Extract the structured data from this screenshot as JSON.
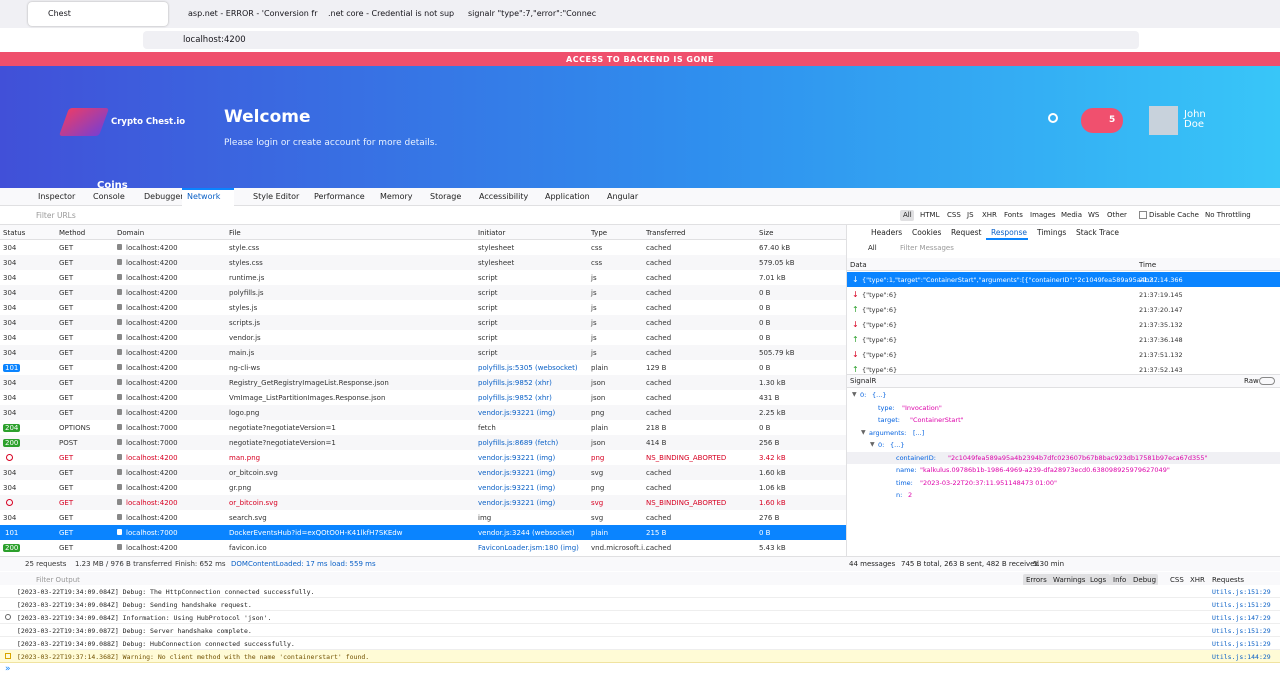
{
  "browser": {
    "tabs": [
      "Chest",
      "asp.net - ERROR - 'Conversion fr",
      ".net core - Credential is not sup",
      "signalr \"type\":7,\"error\":\"Connec"
    ],
    "url": "localhost:4200"
  },
  "app": {
    "banner": "ACCESS TO BACKEND IS GONE",
    "logo": "Crypto Chest.io",
    "title": "Welcome",
    "subtitle": "Please login or create account for more details.",
    "notifications": "5",
    "user": "John Doe",
    "nav": "Coins"
  },
  "devtools": {
    "tools": [
      "Inspector",
      "Console",
      "Debugger",
      "Network",
      "Style Editor",
      "Performance",
      "Memory",
      "Storage",
      "Accessibility",
      "Application",
      "Angular"
    ],
    "filter_placeholder": "Filter URLs",
    "type_filters": [
      "All",
      "HTML",
      "CSS",
      "JS",
      "XHR",
      "Fonts",
      "Images",
      "Media",
      "WS",
      "Other"
    ],
    "disable_cache": "Disable Cache",
    "throttling": "No Throttling",
    "columns": [
      "Status",
      "Method",
      "Domain",
      "File",
      "Initiator",
      "Type",
      "Transferred",
      "Size"
    ],
    "rows": [
      {
        "status": "304",
        "method": "GET",
        "domain": "localhost:4200",
        "file": "style.css",
        "initiator": "stylesheet",
        "type": "css",
        "transferred": "cached",
        "size": "67.40 kB"
      },
      {
        "status": "304",
        "method": "GET",
        "domain": "localhost:4200",
        "file": "styles.css",
        "initiator": "stylesheet",
        "type": "css",
        "transferred": "cached",
        "size": "579.05 kB"
      },
      {
        "status": "304",
        "method": "GET",
        "domain": "localhost:4200",
        "file": "runtime.js",
        "initiator": "script",
        "type": "js",
        "transferred": "cached",
        "size": "7.01 kB"
      },
      {
        "status": "304",
        "method": "GET",
        "domain": "localhost:4200",
        "file": "polyfills.js",
        "initiator": "script",
        "type": "js",
        "transferred": "cached",
        "size": "0 B"
      },
      {
        "status": "304",
        "method": "GET",
        "domain": "localhost:4200",
        "file": "styles.js",
        "initiator": "script",
        "type": "js",
        "transferred": "cached",
        "size": "0 B"
      },
      {
        "status": "304",
        "method": "GET",
        "domain": "localhost:4200",
        "file": "scripts.js",
        "initiator": "script",
        "type": "js",
        "transferred": "cached",
        "size": "0 B"
      },
      {
        "status": "304",
        "method": "GET",
        "domain": "localhost:4200",
        "file": "vendor.js",
        "initiator": "script",
        "type": "js",
        "transferred": "cached",
        "size": "0 B"
      },
      {
        "status": "304",
        "method": "GET",
        "domain": "localhost:4200",
        "file": "main.js",
        "initiator": "script",
        "type": "js",
        "transferred": "cached",
        "size": "505.79 kB"
      },
      {
        "status": "101",
        "method": "GET",
        "domain": "localhost:4200",
        "file": "ng-cli-ws",
        "initiator": "polyfills.js:5305 (websocket)",
        "type": "plain",
        "transferred": "129 B",
        "size": "0 B"
      },
      {
        "status": "304",
        "method": "GET",
        "domain": "localhost:4200",
        "file": "Registry_GetRegistryImageList.Response.json",
        "initiator": "polyfills.js:9852 (xhr)",
        "type": "json",
        "transferred": "cached",
        "size": "1.30 kB"
      },
      {
        "status": "304",
        "method": "GET",
        "domain": "localhost:4200",
        "file": "VmImage_ListPartitionImages.Response.json",
        "initiator": "polyfills.js:9852 (xhr)",
        "type": "json",
        "transferred": "cached",
        "size": "431 B"
      },
      {
        "status": "304",
        "method": "GET",
        "domain": "localhost:4200",
        "file": "logo.png",
        "initiator": "vendor.js:93221 (img)",
        "type": "png",
        "transferred": "cached",
        "size": "2.25 kB"
      },
      {
        "status": "204",
        "method": "OPTIONS",
        "domain": "localhost:7000",
        "file": "negotiate?negotiateVersion=1",
        "initiator": "fetch",
        "type": "plain",
        "transferred": "218 B",
        "size": "0 B"
      },
      {
        "status": "200",
        "method": "POST",
        "domain": "localhost:7000",
        "file": "negotiate?negotiateVersion=1",
        "initiator": "polyfills.js:8689 (fetch)",
        "type": "json",
        "transferred": "414 B",
        "size": "256 B"
      },
      {
        "blocked": true,
        "method": "GET",
        "domain": "localhost:4200",
        "file": "man.png",
        "initiator": "vendor.js:93221 (img)",
        "type": "png",
        "transferred": "NS_BINDING_ABORTED",
        "size": "3.42 kB"
      },
      {
        "status": "304",
        "method": "GET",
        "domain": "localhost:4200",
        "file": "or_bitcoin.svg",
        "initiator": "vendor.js:93221 (img)",
        "type": "svg",
        "transferred": "cached",
        "size": "1.60 kB"
      },
      {
        "status": "304",
        "method": "GET",
        "domain": "localhost:4200",
        "file": "gr.png",
        "initiator": "vendor.js:93221 (img)",
        "type": "png",
        "transferred": "cached",
        "size": "1.06 kB"
      },
      {
        "blocked": true,
        "method": "GET",
        "domain": "localhost:4200",
        "file": "or_bitcoin.svg",
        "initiator": "vendor.js:93221 (img)",
        "type": "svg",
        "transferred": "NS_BINDING_ABORTED",
        "size": "1.60 kB"
      },
      {
        "status": "304",
        "method": "GET",
        "domain": "localhost:4200",
        "file": "search.svg",
        "initiator": "img",
        "type": "svg",
        "transferred": "cached",
        "size": "276 B"
      },
      {
        "status": "101",
        "method": "GET",
        "domain": "localhost:7000",
        "file": "DockerEventsHub?id=exQOtO0H-K41lkfH7SKEdw",
        "initiator": "vendor.js:3244 (websocket)",
        "type": "plain",
        "transferred": "215 B",
        "size": "0 B",
        "selected": true
      },
      {
        "status": "200",
        "method": "GET",
        "domain": "localhost:4200",
        "file": "favicon.ico",
        "initiator": "FaviconLoader.jsm:180 (img)",
        "type": "vnd.microsoft.i...",
        "transferred": "cached",
        "size": "5.43 kB"
      }
    ],
    "summary": [
      "25 requests",
      "1.23 MB / 976 B transferred",
      "Finish: 652 ms",
      "DOMContentLoaded: 17 ms",
      "load: 559 ms"
    ],
    "detail_tabs": [
      "Headers",
      "Cookies",
      "Request",
      "Response",
      "Timings",
      "Stack Trace"
    ],
    "message_filter": "All",
    "message_placeholder": "Filter Messages",
    "message_columns": [
      "Data",
      "Time"
    ],
    "messages": [
      {
        "data": "{\"type\":1,\"target\":\"ContainerStart\",\"arguments\":[{\"containerID\":\"2c1049fea589a95a4b2...",
        "time": "21:37:14.366",
        "direction": "in",
        "selected": true
      },
      {
        "data": "{\"type\":6}",
        "time": "21:37:19.145",
        "direction": "in"
      },
      {
        "data": "{\"type\":6}",
        "time": "21:37:20.147",
        "direction": "out"
      },
      {
        "data": "{\"type\":6}",
        "time": "21:37:35.132",
        "direction": "in"
      },
      {
        "data": "{\"type\":6}",
        "time": "21:37:36.148",
        "direction": "out"
      },
      {
        "data": "{\"type\":6}",
        "time": "21:37:51.132",
        "direction": "in"
      },
      {
        "data": "{\"type\":6}",
        "time": "21:37:52.143",
        "direction": "out"
      }
    ],
    "preview_title": "SignalR",
    "raw": "Raw",
    "tree": [
      {
        "key": "0:",
        "value": "{...}",
        "depth": 0,
        "toggle": true
      },
      {
        "key": "type:",
        "value": "\"Invocation\"",
        "depth": 1
      },
      {
        "key": "target:",
        "value": "\"ContainerStart\"",
        "depth": 1
      },
      {
        "key": "arguments:",
        "value": "[...]",
        "depth": 1,
        "toggle": true
      },
      {
        "key": "0:",
        "value": "{...}",
        "depth": 2,
        "toggle": true
      },
      {
        "key": "containerID:",
        "value": "\"2c1049fea589a95a4b2394b7dfc023607b67b8bac923db17581b97eca67d355\"",
        "depth": 3,
        "selected": true
      },
      {
        "key": "name:",
        "value": "\"kalkulus.09786b1b-1986-4969-a239-dfa28973ecd0.638098925979627049\"",
        "depth": 3
      },
      {
        "key": "time:",
        "value": "\"2023-03-22T20:37:11.951148473 01:00\"",
        "depth": 3
      },
      {
        "key": "n:",
        "value": "2",
        "depth": 3
      }
    ],
    "message_summary": [
      "44 messages",
      "745 B total, 263 B sent, 482 B received",
      "5.30 min"
    ],
    "console_placeholder": "Filter Output",
    "console_filters": [
      "Errors",
      "Warnings",
      "Logs",
      "Info",
      "Debug",
      "CSS",
      "XHR",
      "Requests"
    ],
    "console": [
      {
        "text": "[2023-03-22T19:34:09.084Z] Debug: The HttpConnection connected successfully.",
        "source": "Utils.js:151:29"
      },
      {
        "text": "[2023-03-22T19:34:09.084Z] Debug: Sending handshake request.",
        "source": "Utils.js:151:29"
      },
      {
        "text": "[2023-03-22T19:34:09.084Z] Information: Using HubProtocol 'json'.",
        "source": "Utils.js:147:29",
        "level": "info"
      },
      {
        "text": "[2023-03-22T19:34:09.087Z] Debug: Server handshake complete.",
        "source": "Utils.js:151:29"
      },
      {
        "text": "[2023-03-22T19:34:09.088Z] Debug: HubConnection connected successfully.",
        "source": "Utils.js:151:29"
      },
      {
        "text": "[2023-03-22T19:37:14.368Z] Warning: No client method with the name 'containerstart' found.",
        "source": "Utils.js:144:29",
        "level": "warn"
      }
    ]
  }
}
